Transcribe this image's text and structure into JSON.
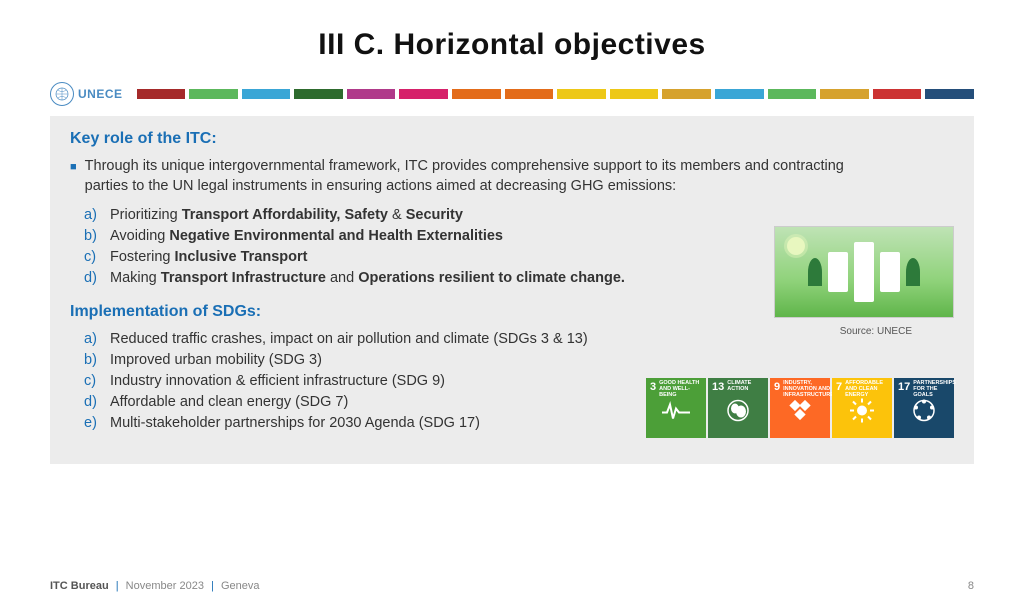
{
  "title": "III C. Horizontal objectives",
  "brand": "UNECE",
  "color_bar": [
    "#a52a2a",
    "#5cb85c",
    "#3aa6d6",
    "#2e6b2e",
    "#b03a8a",
    "#d6216a",
    "#e36c1a",
    "#e36c1a",
    "#edc817",
    "#edc817",
    "#d6a22e",
    "#3aa6d6",
    "#5cb85c",
    "#d6a22e",
    "#cc3333",
    "#244e7a"
  ],
  "key_role_head": "Key role of the ITC:",
  "intro": "Through its unique intergovernmental framework, ITC provides comprehensive support to its members and contracting parties to the UN legal instruments in ensuring actions aimed at decreasing GHG emissions:",
  "key_items": [
    {
      "l": "a)",
      "pre": "Prioritizing ",
      "b": "Transport Affordability, Safety",
      "mid": " & ",
      "b2": "Security",
      "post": ""
    },
    {
      "l": "b)",
      "pre": "Avoiding ",
      "b": "Negative Environmental and Health Externalities",
      "mid": "",
      "b2": "",
      "post": ""
    },
    {
      "l": "c)",
      "pre": "Fostering ",
      "b": "Inclusive Transport",
      "mid": "",
      "b2": "",
      "post": ""
    },
    {
      "l": "d)",
      "pre": "Making ",
      "b": "Transport Infrastructure",
      "mid": " and ",
      "b2": "Operations resilient to climate change.",
      "post": ""
    }
  ],
  "image_source": "Source: UNECE",
  "sdg_head": "Implementation of SDGs:",
  "sdg_items": [
    {
      "l": "a)",
      "t": "Reduced traffic crashes, impact on air pollution and climate (SDGs 3 & 13)"
    },
    {
      "l": "b)",
      "t": "Improved urban mobility (SDG 3)"
    },
    {
      "l": "c)",
      "t": "Industry innovation & efficient infrastructure (SDG 9)"
    },
    {
      "l": "d)",
      "t": "Affordable and clean energy (SDG 7)"
    },
    {
      "l": "e)",
      "t": "Multi-stakeholder partnerships for 2030 Agenda (SDG 17)"
    }
  ],
  "sdgs": [
    {
      "n": "3",
      "t": "Good Health and Well-Being",
      "c": "#4c9f38"
    },
    {
      "n": "13",
      "t": "Climate Action",
      "c": "#3f7e44"
    },
    {
      "n": "9",
      "t": "Industry, Innovation and Infrastructure",
      "c": "#fd6925"
    },
    {
      "n": "7",
      "t": "Affordable and Clean Energy",
      "c": "#fcc30b"
    },
    {
      "n": "17",
      "t": "Partnerships for the Goals",
      "c": "#19486a"
    }
  ],
  "footer": {
    "bureau": "ITC Bureau",
    "date": "November 2023",
    "place": "Geneva",
    "page": "8"
  }
}
